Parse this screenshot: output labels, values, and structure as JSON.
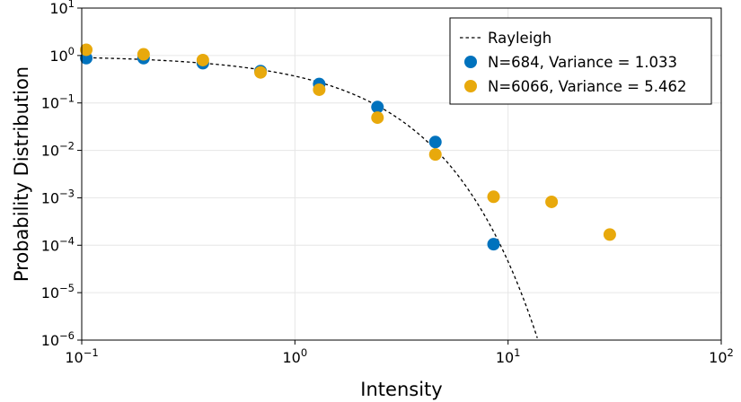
{
  "chart_data": {
    "type": "scatter",
    "xlabel": "Intensity",
    "ylabel": "Probability Distribution",
    "xscale": "log",
    "yscale": "log",
    "xlim": [
      0.1,
      100
    ],
    "ylim": [
      1e-06,
      10
    ],
    "grid": true,
    "legend_position": "top-right",
    "x_ticks": [
      {
        "value": 0.1,
        "mantissa": "10",
        "exponent": "−1"
      },
      {
        "value": 1,
        "mantissa": "10",
        "exponent": "0"
      },
      {
        "value": 10,
        "mantissa": "10",
        "exponent": "1"
      },
      {
        "value": 100,
        "mantissa": "10",
        "exponent": "2"
      }
    ],
    "y_ticks": [
      {
        "value": 10,
        "mantissa": "10",
        "exponent": "1"
      },
      {
        "value": 1,
        "mantissa": "10",
        "exponent": "0"
      },
      {
        "value": 0.1,
        "mantissa": "10",
        "exponent": "−1"
      },
      {
        "value": 0.01,
        "mantissa": "10",
        "exponent": "−2"
      },
      {
        "value": 0.001,
        "mantissa": "10",
        "exponent": "−3"
      },
      {
        "value": 0.0001,
        "mantissa": "10",
        "exponent": "−4"
      },
      {
        "value": 1e-05,
        "mantissa": "10",
        "exponent": "−5"
      },
      {
        "value": 1e-06,
        "mantissa": "10",
        "exponent": "−6"
      }
    ],
    "series": [
      {
        "name": "Rayleigh",
        "kind": "line",
        "style": "dashed",
        "color": "#000000",
        "function": "exp(-x)",
        "x_range": [
          0.1,
          14
        ]
      },
      {
        "name": "N=684, Variance = 1.033",
        "kind": "scatter",
        "color": "#0072BD",
        "x": [
          0.105,
          0.195,
          0.37,
          0.69,
          1.3,
          2.44,
          4.56,
          8.55
        ],
        "y": [
          0.88,
          0.88,
          0.69,
          0.47,
          0.25,
          0.082,
          0.015,
          0.000105
        ]
      },
      {
        "name": "N=6066, Variance = 5.462",
        "kind": "scatter",
        "color": "#E8A90C",
        "x": [
          0.105,
          0.195,
          0.37,
          0.69,
          1.3,
          2.44,
          4.56,
          8.55,
          16.0,
          30.0
        ],
        "y": [
          1.32,
          1.06,
          0.8,
          0.44,
          0.19,
          0.049,
          0.0082,
          0.00105,
          0.00082,
          0.000168
        ]
      }
    ]
  }
}
